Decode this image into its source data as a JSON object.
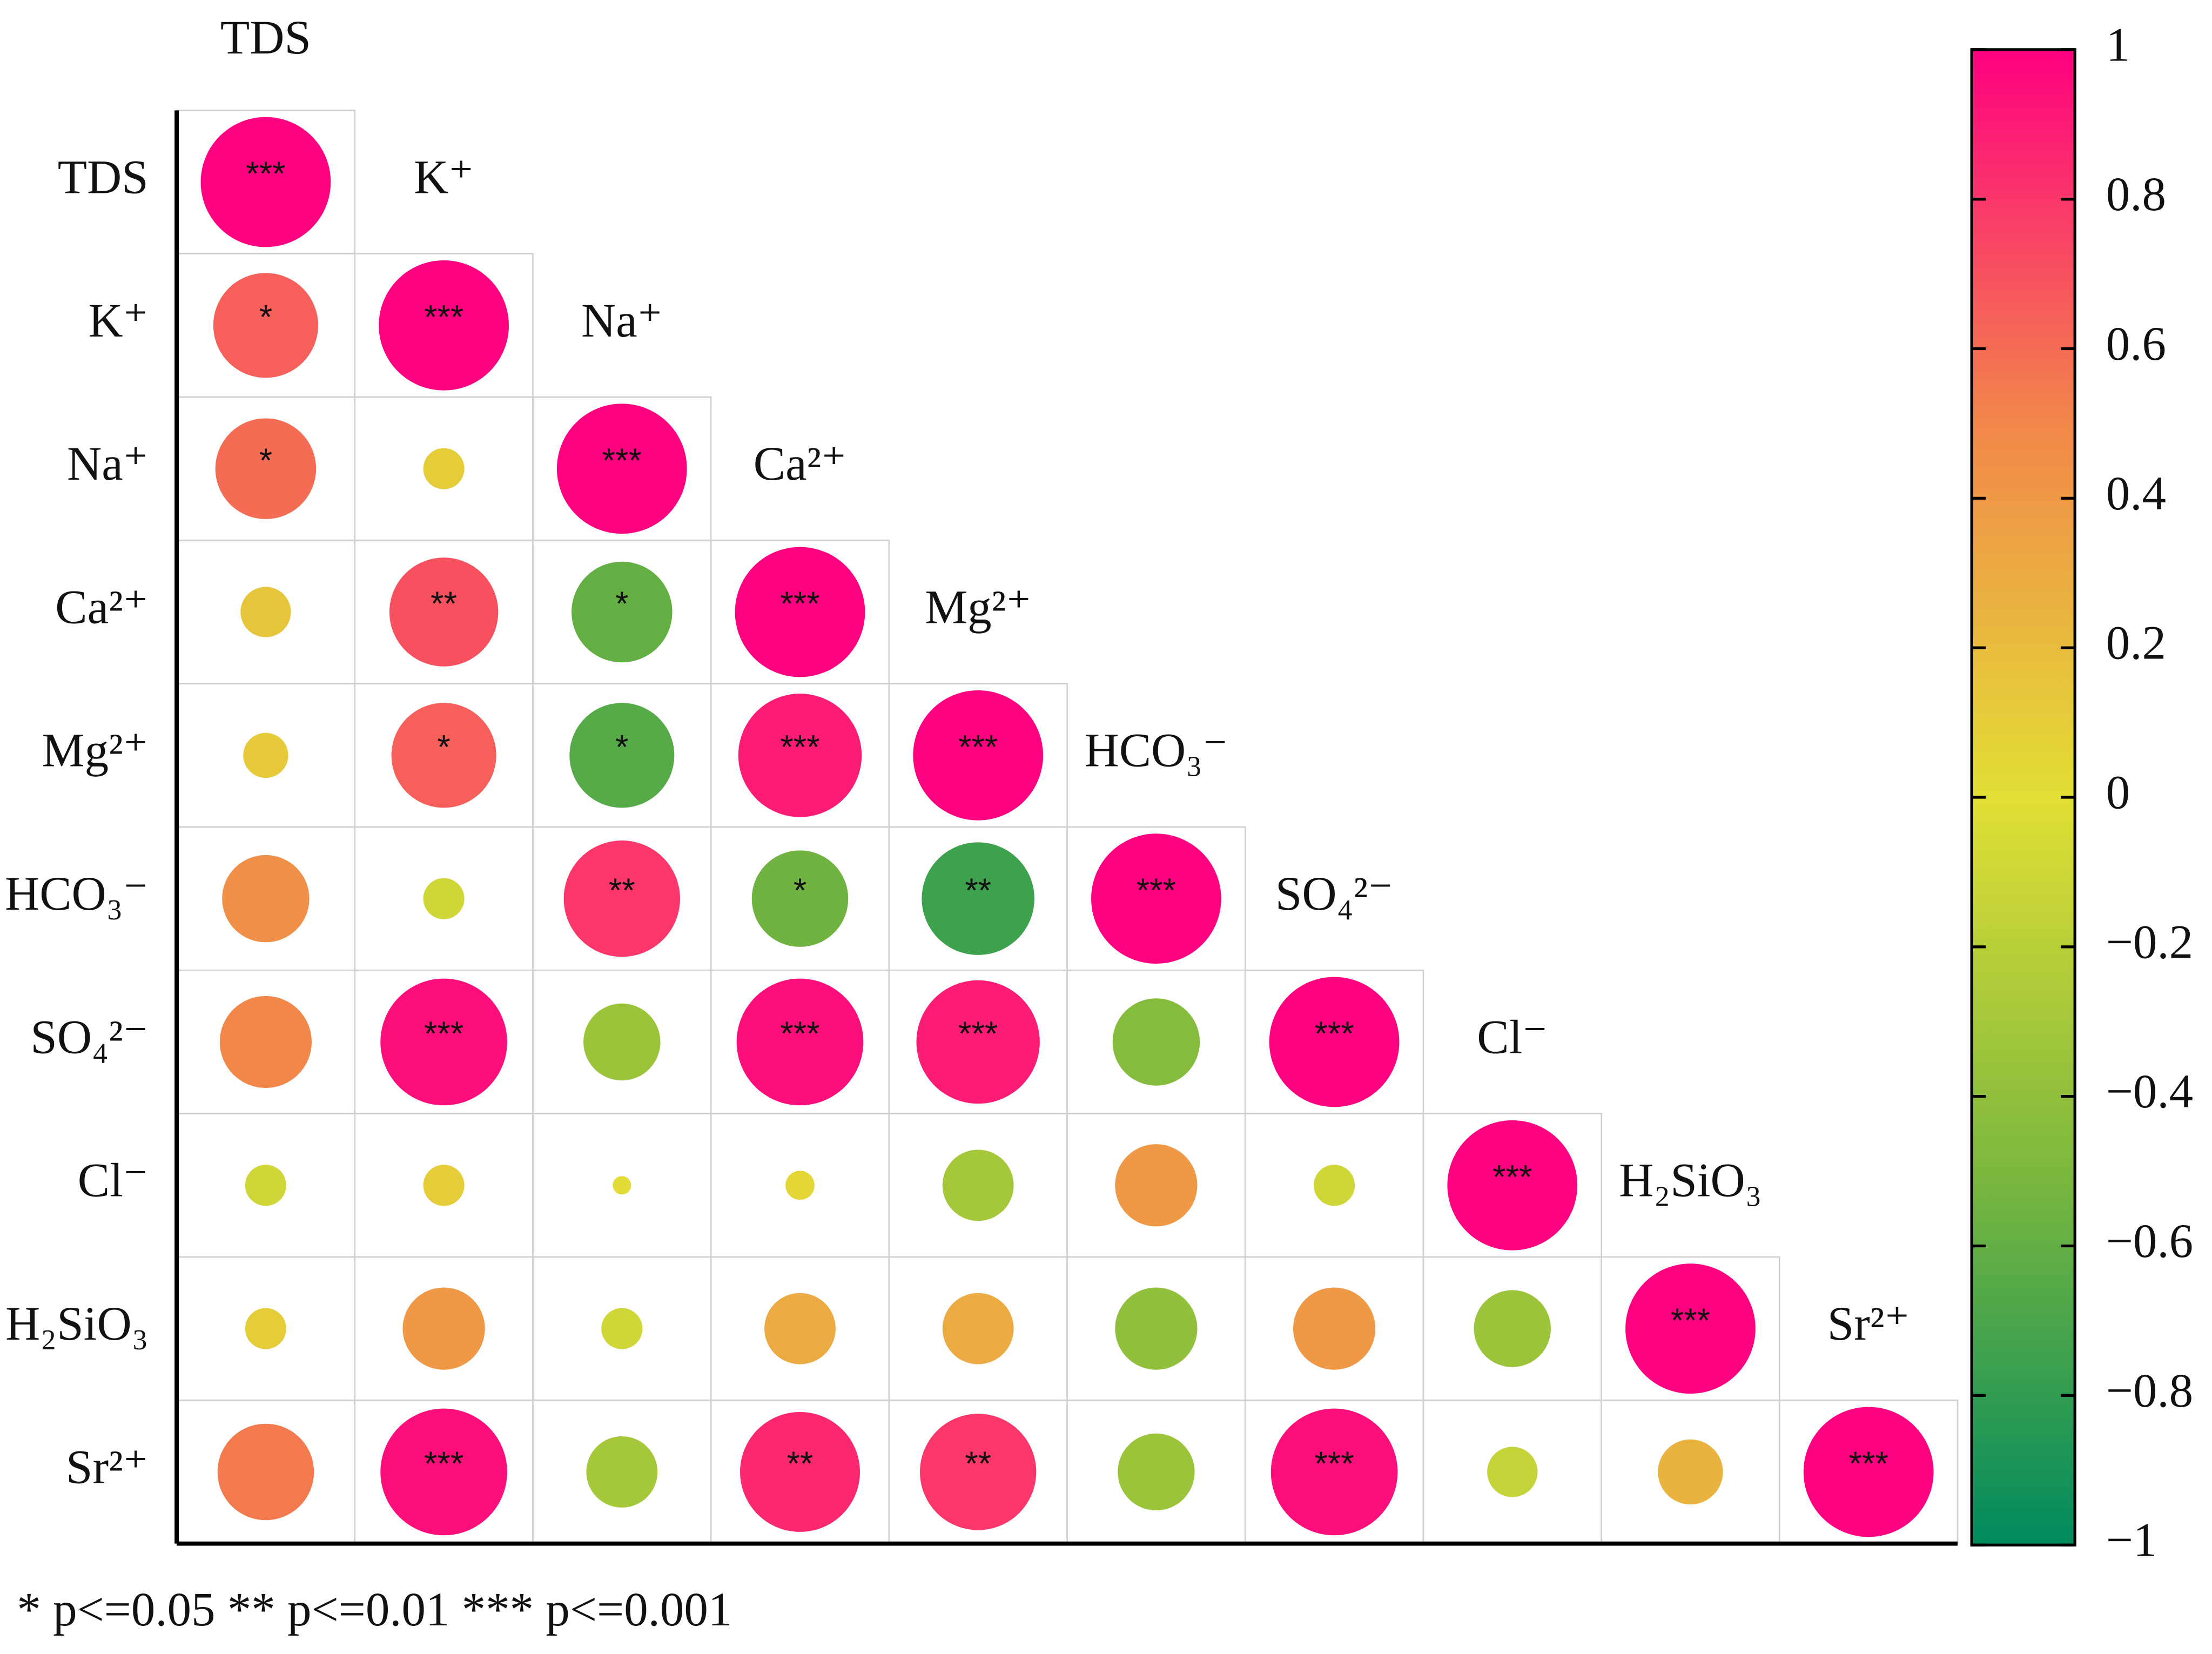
{
  "chart_data": {
    "type": "correlogram",
    "variables": [
      "TDS",
      "K⁺",
      "Na⁺",
      "Ca²⁺",
      "Mg²⁺",
      "HCO₃⁻",
      "SO₄²⁻",
      "Cl⁻",
      "H₂SiO₃",
      "Sr²⁺"
    ],
    "values": [
      [
        1
      ],
      [
        0.65,
        1
      ],
      [
        0.6,
        0.1,
        1
      ],
      [
        0.15,
        0.7,
        -0.6,
        1
      ],
      [
        0.12,
        0.65,
        -0.65,
        0.9,
        1
      ],
      [
        0.45,
        -0.1,
        0.8,
        -0.55,
        -0.75,
        1
      ],
      [
        0.5,
        0.95,
        -0.35,
        0.95,
        0.9,
        -0.45,
        1
      ],
      [
        -0.1,
        0.1,
        0.02,
        0.05,
        -0.3,
        0.4,
        -0.1,
        1
      ],
      [
        0.1,
        0.4,
        -0.1,
        0.3,
        0.3,
        -0.4,
        0.4,
        -0.35,
        1
      ],
      [
        0.55,
        0.95,
        -0.3,
        0.85,
        0.8,
        -0.35,
        0.95,
        -0.15,
        0.25,
        1
      ]
    ],
    "stars": [
      [
        "***"
      ],
      [
        "*",
        "***"
      ],
      [
        "*",
        null,
        "***"
      ],
      [
        null,
        "**",
        "*",
        "***"
      ],
      [
        null,
        "*",
        "*",
        "***",
        "***"
      ],
      [
        null,
        null,
        "**",
        "*",
        "**",
        "***"
      ],
      [
        null,
        "***",
        null,
        "***",
        "***",
        null,
        "***"
      ],
      [
        null,
        null,
        null,
        null,
        null,
        null,
        null,
        "***"
      ],
      [
        null,
        null,
        null,
        null,
        null,
        null,
        null,
        null,
        "***"
      ],
      [
        null,
        "***",
        null,
        "**",
        "**",
        null,
        "***",
        null,
        null,
        "***"
      ]
    ],
    "colors": [
      "#008a5e",
      "#7cb83e",
      "#e2df35",
      "#f2874a",
      "#ff0080"
    ],
    "clim": [
      -1,
      1
    ],
    "cticks": [
      {
        "value": -1,
        "label": "−1"
      },
      {
        "value": -0.8,
        "label": "−0.8"
      },
      {
        "value": -0.6,
        "label": "−0.6"
      },
      {
        "value": -0.4,
        "label": "−0.4"
      },
      {
        "value": -0.2,
        "label": "−0.2"
      },
      0,
      0.2,
      0.4,
      0.6,
      0.8,
      1
    ],
    "footnote": "* p<=0.05  ** p<=0.01  *** p<=0.001"
  }
}
